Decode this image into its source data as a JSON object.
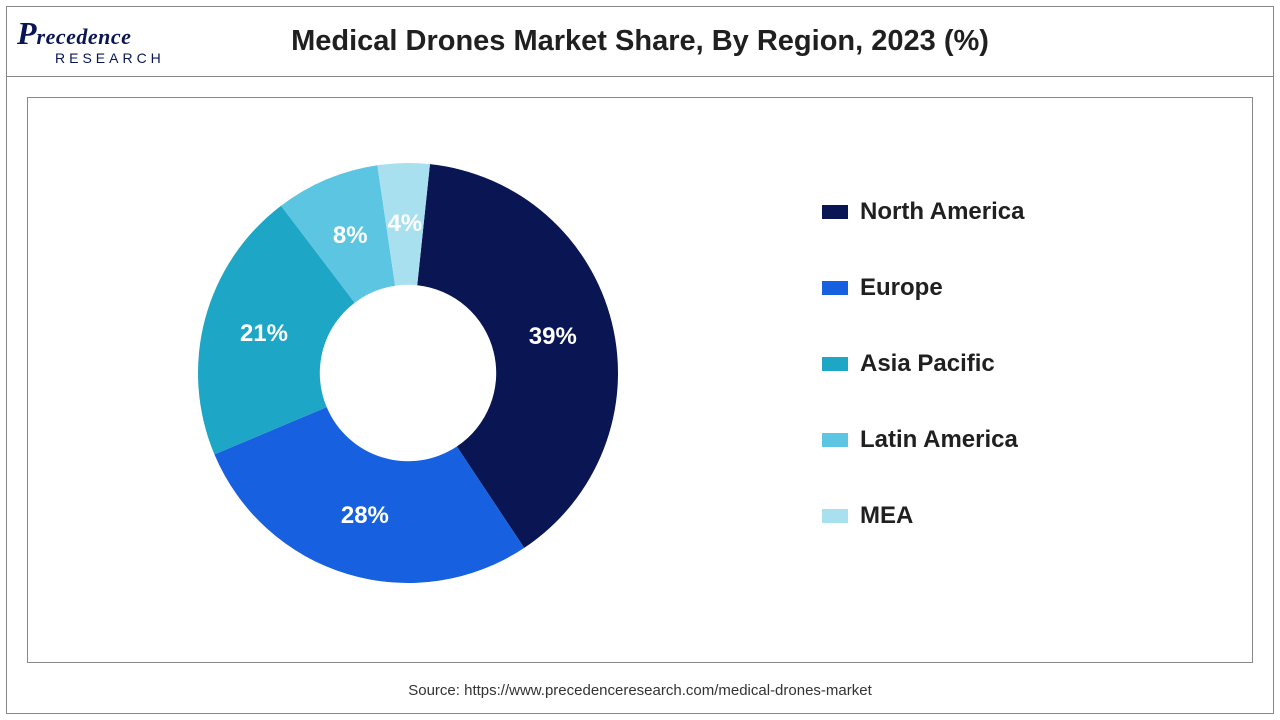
{
  "title": "Medical Drones Market Share, By Region, 2023 (%)",
  "logo": {
    "brand_top": "recedence",
    "brand_p": "P",
    "brand_sub": "RESEARCH"
  },
  "chart": {
    "type": "pie",
    "donut_inner_ratio": 0.42,
    "background_color": "#ffffff",
    "border_color": "#888888",
    "label_color": "#ffffff",
    "label_fontsize": 24,
    "slices": [
      {
        "label": "North America",
        "value": 39,
        "color": "#0a1654"
      },
      {
        "label": "Europe",
        "value": 28,
        "color": "#1760e0"
      },
      {
        "label": "Asia Pacific",
        "value": 21,
        "color": "#1ea6c6"
      },
      {
        "label": "Latin America",
        "value": 8,
        "color": "#5bc5e2"
      },
      {
        "label": "MEA",
        "value": 4,
        "color": "#a8e0f0"
      }
    ],
    "legend": {
      "fontsize": 24,
      "fontweight": "bold",
      "swatch_w": 26,
      "swatch_h": 14
    }
  },
  "source": "Source: https://www.precedenceresearch.com/medical-drones-market"
}
